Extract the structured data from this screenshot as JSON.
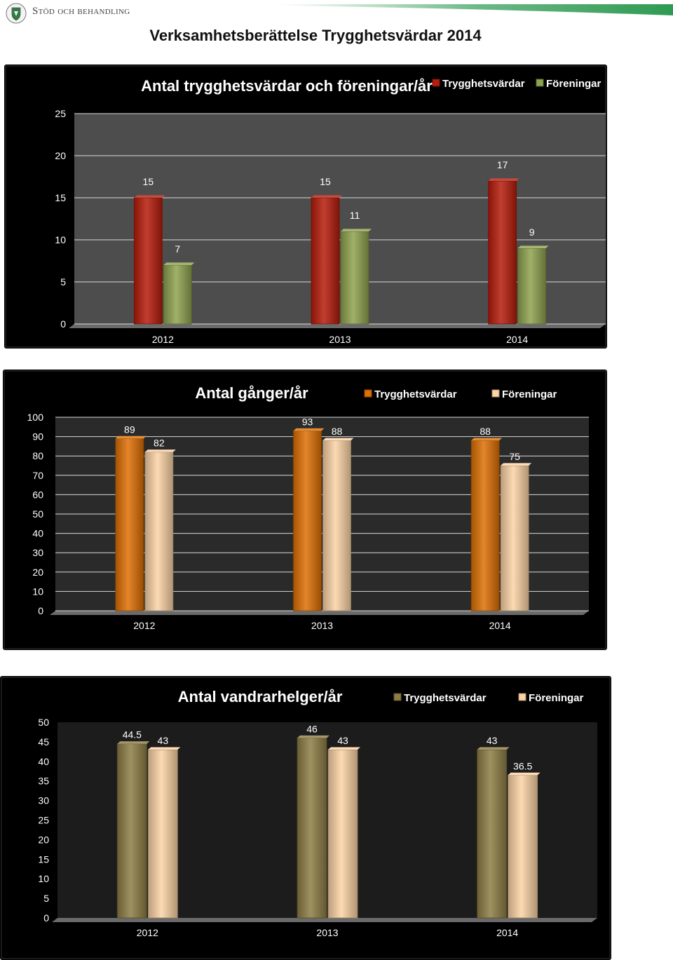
{
  "header": {
    "brand": "Stöd och behandling",
    "page_title": "Verksamhetsberättelse Trygghetsvärdar 2014"
  },
  "colors": {
    "red_bar": "#b61c0b",
    "green_bar": "#8fa34f",
    "orange_bar": "#de7004",
    "peach_bar": "#fcd3a5",
    "olive_bar": "#8d7d45",
    "stripe_green": "#2e9a52"
  },
  "chart_data": [
    {
      "type": "bar",
      "title": "Antal trygghetsvärdar och föreningar/år",
      "categories": [
        "2012",
        "2013",
        "2014"
      ],
      "series": [
        {
          "name": "Trygghetsvärdar",
          "values": [
            15,
            15,
            17
          ],
          "labels": [
            "15",
            "15",
            "17"
          ],
          "color": "#b61c0b"
        },
        {
          "name": "Föreningar",
          "values": [
            7,
            11,
            9
          ],
          "labels": [
            "7",
            "11",
            "9"
          ],
          "color": "#8fa34f"
        }
      ],
      "ylim": [
        0,
        25
      ],
      "yticks": [
        "0",
        "5",
        "10",
        "15",
        "20",
        "25"
      ],
      "legend": "top-right",
      "grid": true
    },
    {
      "type": "bar",
      "title": "Antal gånger/år",
      "categories": [
        "2012",
        "2013",
        "2014"
      ],
      "series": [
        {
          "name": "Trygghetsvärdar",
          "values": [
            89,
            93,
            88
          ],
          "labels": [
            "89",
            "93",
            "88"
          ],
          "color": "#de7004"
        },
        {
          "name": "Föreningar",
          "values": [
            82,
            88,
            75
          ],
          "labels": [
            "82",
            "88",
            "75"
          ],
          "color": "#fcd3a5"
        }
      ],
      "ylim": [
        0,
        100
      ],
      "yticks": [
        "0",
        "10",
        "20",
        "30",
        "40",
        "50",
        "60",
        "70",
        "80",
        "90",
        "100"
      ],
      "legend": "top-right",
      "grid": true
    },
    {
      "type": "bar",
      "title": "Antal vandrarhelger/år",
      "categories": [
        "2012",
        "2013",
        "2014"
      ],
      "series": [
        {
          "name": "Trygghetsvärdar",
          "values": [
            44.5,
            46,
            43
          ],
          "labels": [
            "44.5",
            "46",
            "43"
          ],
          "color": "#8d7d45"
        },
        {
          "name": "Föreningar",
          "values": [
            43,
            43,
            36.5
          ],
          "labels": [
            "43",
            "43",
            "36.5"
          ],
          "color": "#fcd3a5"
        }
      ],
      "ylim": [
        0,
        50
      ],
      "yticks": [
        "0",
        "5",
        "10",
        "15",
        "20",
        "25",
        "30",
        "35",
        "40",
        "45",
        "50"
      ],
      "legend": "top-right",
      "grid": false
    }
  ]
}
